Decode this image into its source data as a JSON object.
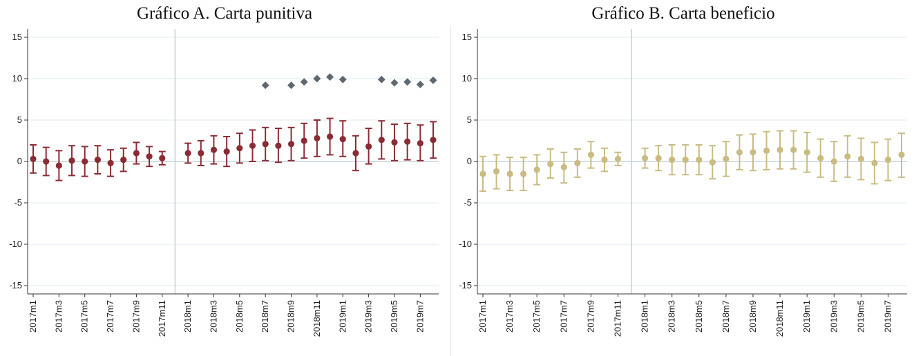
{
  "chart_data": [
    {
      "type": "scatter",
      "title": "Gráfico A. Carta punitiva",
      "ylim": [
        -16,
        16
      ],
      "yticks": [
        15,
        10,
        5,
        0,
        -5,
        -10,
        -15
      ],
      "xtick_labels": [
        "2017m1",
        "2017m3",
        "2017m5",
        "2017m7",
        "2017m9",
        "2017m11",
        "2018m1",
        "2018m3",
        "2018m5",
        "2018m7",
        "2018m9",
        "2018m11",
        "2019m1",
        "2019m3",
        "2019m5",
        "2019m7"
      ],
      "colors": {
        "estimate": "#8b2c35",
        "marker2": "#5f6871",
        "baseline": "#c8d3dc"
      },
      "months": [
        "2017m1",
        "2017m2",
        "2017m3",
        "2017m4",
        "2017m5",
        "2017m6",
        "2017m7",
        "2017m8",
        "2017m9",
        "2017m10",
        "2017m11",
        "2018m1",
        "2018m2",
        "2018m3",
        "2018m4",
        "2018m5",
        "2018m6",
        "2018m7",
        "2018m8",
        "2018m9",
        "2018m10",
        "2018m11",
        "2018m12",
        "2019m1",
        "2019m2",
        "2019m3",
        "2019m4",
        "2019m5",
        "2019m6",
        "2019m7",
        "2019m8"
      ],
      "estimate": [
        0.3,
        0.0,
        -0.5,
        0.1,
        0.0,
        0.2,
        -0.2,
        0.2,
        1.0,
        0.6,
        0.4,
        1.0,
        1.0,
        1.4,
        1.2,
        1.6,
        1.9,
        2.1,
        1.9,
        2.1,
        2.5,
        2.8,
        3.0,
        2.7,
        1.0,
        1.8,
        2.6,
        2.3,
        2.4,
        2.2,
        2.6
      ],
      "ci_low": [
        -1.4,
        -1.7,
        -2.3,
        -1.7,
        -1.8,
        -1.5,
        -1.8,
        -1.2,
        -0.3,
        -0.6,
        -0.4,
        -0.2,
        -0.5,
        -0.3,
        -0.6,
        -0.2,
        0.0,
        0.1,
        -0.1,
        0.1,
        0.4,
        0.6,
        0.8,
        0.6,
        -1.1,
        -0.3,
        0.3,
        0.1,
        0.2,
        0.1,
        0.4
      ],
      "ci_high": [
        2.0,
        1.7,
        1.3,
        1.9,
        1.8,
        1.9,
        1.4,
        1.6,
        2.3,
        1.8,
        1.2,
        2.2,
        2.5,
        3.1,
        3.0,
        3.4,
        3.8,
        4.1,
        4.0,
        4.1,
        4.6,
        5.0,
        5.2,
        4.9,
        3.1,
        4.0,
        4.9,
        4.5,
        4.6,
        4.4,
        4.8
      ],
      "marker2_x": [
        "2018m7",
        "2018m9",
        "2018m10",
        "2018m11",
        "2018m12",
        "2019m1",
        "2019m4",
        "2019m5",
        "2019m6",
        "2019m7",
        "2019m8"
      ],
      "marker2_y": [
        9.2,
        9.2,
        9.6,
        10.0,
        10.2,
        9.9,
        9.9,
        9.5,
        9.6,
        9.3,
        9.8
      ]
    },
    {
      "type": "scatter",
      "title": "Gráfico B. Carta beneficio",
      "ylim": [
        -16,
        16
      ],
      "yticks": [
        15,
        10,
        5,
        0,
        -5,
        -10,
        -15
      ],
      "xtick_labels": [
        "2017m1",
        "2017m3",
        "2017m5",
        "2017m7",
        "2017m9",
        "2017m11",
        "2018m1",
        "2018m3",
        "2018m5",
        "2018m7",
        "2018m9",
        "2018m11",
        "2019m1",
        "2019m3",
        "2019m5",
        "2019m7"
      ],
      "colors": {
        "estimate": "#c9bb82",
        "baseline": "#c8d3dc"
      },
      "months": [
        "2017m1",
        "2017m2",
        "2017m3",
        "2017m4",
        "2017m5",
        "2017m6",
        "2017m7",
        "2017m8",
        "2017m9",
        "2017m10",
        "2017m11",
        "2018m1",
        "2018m2",
        "2018m3",
        "2018m4",
        "2018m5",
        "2018m6",
        "2018m7",
        "2018m8",
        "2018m9",
        "2018m10",
        "2018m11",
        "2018m12",
        "2019m1",
        "2019m2",
        "2019m3",
        "2019m4",
        "2019m5",
        "2019m6",
        "2019m7",
        "2019m8"
      ],
      "estimate": [
        -1.5,
        -1.2,
        -1.5,
        -1.5,
        -1.0,
        -0.3,
        -0.7,
        -0.2,
        0.8,
        0.2,
        0.3,
        0.4,
        0.4,
        0.2,
        0.2,
        0.2,
        -0.1,
        0.3,
        1.1,
        1.1,
        1.3,
        1.4,
        1.4,
        1.1,
        0.4,
        0.0,
        0.6,
        0.3,
        -0.2,
        0.2,
        0.8
      ],
      "ci_low": [
        -3.6,
        -3.3,
        -3.5,
        -3.5,
        -2.8,
        -2.0,
        -2.6,
        -1.9,
        -0.8,
        -1.2,
        -0.5,
        -0.8,
        -1.1,
        -1.6,
        -1.6,
        -1.6,
        -2.1,
        -1.8,
        -1.0,
        -1.1,
        -1.0,
        -0.9,
        -0.9,
        -1.3,
        -1.9,
        -2.4,
        -1.9,
        -2.2,
        -2.7,
        -2.3,
        -1.9
      ],
      "ci_high": [
        0.6,
        0.8,
        0.5,
        0.5,
        0.8,
        1.5,
        1.1,
        1.5,
        2.4,
        1.6,
        1.1,
        1.6,
        1.9,
        2.0,
        2.0,
        2.0,
        1.9,
        2.4,
        3.2,
        3.3,
        3.6,
        3.7,
        3.7,
        3.5,
        2.7,
        2.4,
        3.1,
        2.8,
        2.3,
        2.7,
        3.4
      ]
    }
  ]
}
